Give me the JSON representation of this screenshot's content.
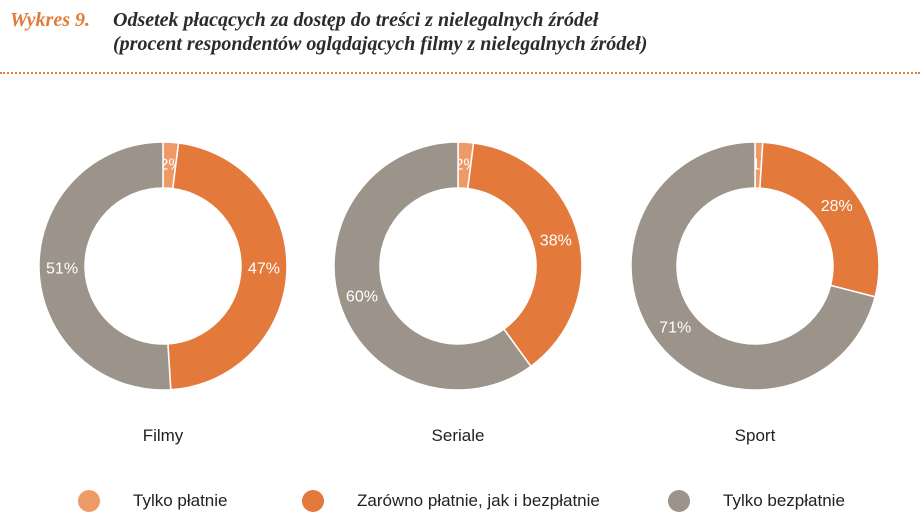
{
  "title": {
    "figure_label": "Wykres 9.",
    "line1": "Odsetek płacących za dostęp do treści z nielegalnych źródeł",
    "line2": "(procent respondentów oglądających filmy z nielegalnych źródeł)"
  },
  "colors": {
    "accent": "#e07b39",
    "only_paid": "#ee9a66",
    "both": "#e3793b",
    "only_free": "#9c938a"
  },
  "legend": [
    {
      "label": "Tylko płatnie",
      "color": "#ee9a66"
    },
    {
      "label": "Zarówno płatnie, jak i bezpłatnie",
      "color": "#e3793b"
    },
    {
      "label": "Tylko bezpłatnie",
      "color": "#9c938a"
    }
  ],
  "chart_data": [
    {
      "type": "pie",
      "title": "Filmy",
      "categories": [
        "Tylko płatnie",
        "Zarówno płatnie, jak i bezpłatnie",
        "Tylko bezpłatnie"
      ],
      "values": [
        2,
        47,
        51
      ],
      "labels": [
        "2%",
        "47%",
        "51%"
      ]
    },
    {
      "type": "pie",
      "title": "Seriale",
      "categories": [
        "Tylko płatnie",
        "Zarówno płatnie, jak i bezpłatnie",
        "Tylko bezpłatnie"
      ],
      "values": [
        2,
        38,
        60
      ],
      "labels": [
        "2%",
        "38%",
        "60%"
      ]
    },
    {
      "type": "pie",
      "title": "Sport",
      "categories": [
        "Tylko płatnie",
        "Zarówno płatnie, jak i bezpłatnie",
        "Tylko bezpłatnie"
      ],
      "values": [
        1,
        28,
        71
      ],
      "labels": [
        "1%",
        "28%",
        "71%"
      ]
    }
  ]
}
